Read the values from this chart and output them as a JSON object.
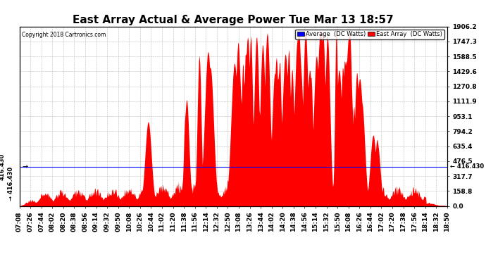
{
  "title": "East Array Actual & Average Power Tue Mar 13 18:57",
  "copyright": "Copyright 2018 Cartronics.com",
  "legend_labels": [
    "Average  (DC Watts)",
    "East Array  (DC Watts)"
  ],
  "legend_colors": [
    "#0000ff",
    "#ff0000"
  ],
  "average_value": 416.43,
  "y_max": 1906.2,
  "y_min": 0.0,
  "y_ticks": [
    0.0,
    158.8,
    317.7,
    476.5,
    635.4,
    794.2,
    953.1,
    1111.9,
    1270.8,
    1429.6,
    1588.5,
    1747.3,
    1906.2
  ],
  "x_ticks": [
    "07:08",
    "07:26",
    "07:44",
    "08:02",
    "08:20",
    "08:38",
    "08:56",
    "09:14",
    "09:32",
    "09:50",
    "10:08",
    "10:26",
    "10:44",
    "11:02",
    "11:20",
    "11:38",
    "11:56",
    "12:14",
    "12:32",
    "12:50",
    "13:08",
    "13:26",
    "13:44",
    "14:02",
    "14:20",
    "14:38",
    "14:56",
    "15:14",
    "15:32",
    "15:50",
    "16:08",
    "16:26",
    "16:44",
    "17:02",
    "17:20",
    "17:38",
    "17:56",
    "18:14",
    "18:32",
    "18:50"
  ],
  "background_color": "#ffffff",
  "plot_bg_color": "#ffffff",
  "grid_color": "#bbbbbb",
  "fill_color": "#ff0000",
  "avg_line_color": "#0000ff",
  "title_fontsize": 11,
  "tick_fontsize": 6.5,
  "left_label": "416.430",
  "right_label": "416.430"
}
